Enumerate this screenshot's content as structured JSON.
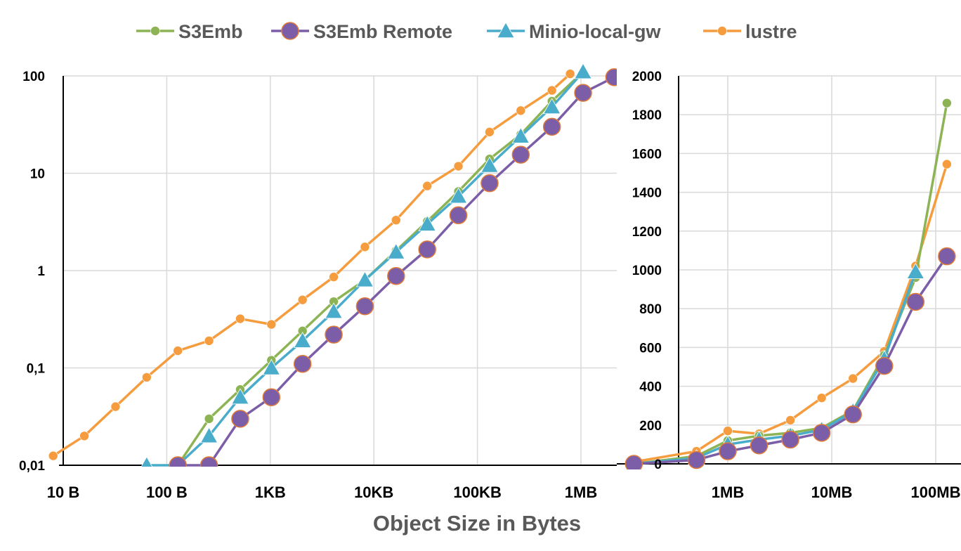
{
  "chart_data": [
    {
      "type": "line",
      "panel": "left",
      "y_scale": "log",
      "x_scale": "log",
      "ylim": [
        0.01,
        100
      ],
      "xlim": [
        "10 B",
        "~3MB"
      ],
      "y_ticks": [
        "0,01",
        "0,1",
        "1",
        "10",
        "100"
      ],
      "x_ticks": [
        "10 B",
        "100 B",
        "1KB",
        "10KB",
        "100KB",
        "1MB"
      ],
      "grid": true,
      "series": [
        {
          "name": "S3Emb",
          "color": "#8db454",
          "marker": "circle-small",
          "x_bytes": [
            128,
            256,
            512,
            1024,
            2048,
            4096,
            8192,
            16384,
            32768,
            65536,
            131072,
            262144,
            524288,
            1048576
          ],
          "y": [
            0.01,
            0.03,
            0.06,
            0.12,
            0.24,
            0.48,
            0.8,
            1.6,
            3.2,
            6.5,
            14,
            25,
            55,
            110
          ]
        },
        {
          "name": "S3Emb Remote",
          "color": "#7b5ea7",
          "marker": "circle-large",
          "x_bytes": [
            128,
            256,
            512,
            1024,
            2048,
            4096,
            8192,
            16384,
            32768,
            65536,
            131072,
            262144,
            524288,
            1048576,
            2097152
          ],
          "y": [
            0.01,
            0.01,
            0.03,
            0.05,
            0.11,
            0.22,
            0.43,
            0.88,
            1.65,
            3.7,
            7.9,
            15.5,
            30,
            67,
            97
          ]
        },
        {
          "name": "Minio-local-gw",
          "color": "#4aaccb",
          "marker": "triangle",
          "x_bytes": [
            64,
            128,
            256,
            512,
            1024,
            2048,
            4096,
            8192,
            16384,
            32768,
            65536,
            131072,
            262144,
            524288,
            1048576
          ],
          "y": [
            0.01,
            0.01,
            0.02,
            0.05,
            0.1,
            0.19,
            0.38,
            0.8,
            1.55,
            3.0,
            5.8,
            12,
            24,
            48,
            110
          ]
        },
        {
          "name": "lustre",
          "color": "#f59c3e",
          "marker": "circle-small",
          "x_bytes": [
            8,
            16,
            32,
            64,
            128,
            256,
            512,
            1024,
            2048,
            4096,
            8192,
            16384,
            32768,
            65536,
            131072,
            262144,
            524288,
            786432
          ],
          "y": [
            0.0125,
            0.02,
            0.04,
            0.08,
            0.15,
            0.19,
            0.32,
            0.28,
            0.5,
            0.86,
            1.75,
            3.3,
            7.4,
            11.8,
            26.5,
            44,
            71,
            105
          ]
        }
      ]
    },
    {
      "type": "line",
      "panel": "right",
      "y_scale": "linear",
      "x_scale": "log",
      "ylim": [
        0,
        2000
      ],
      "y_ticks": [
        "0",
        "200",
        "400",
        "600",
        "800",
        "1000",
        "1200",
        "1400",
        "1600",
        "1800",
        "2000"
      ],
      "x_ticks": [
        "1MB",
        "10MB",
        "100MB"
      ],
      "grid": true,
      "series": [
        {
          "name": "S3Emb",
          "color": "#8db454",
          "marker": "circle-small",
          "x_bytes": [
            131072,
            524288,
            1048576,
            2097152,
            4194304,
            8388608,
            16777216,
            33554432,
            67108864,
            134217728
          ],
          "y": [
            0,
            40,
            120,
            145,
            160,
            185,
            275,
            560,
            960,
            1860
          ]
        },
        {
          "name": "S3Emb Remote",
          "color": "#7b5ea7",
          "marker": "circle-large",
          "x_bytes": [
            131072,
            524288,
            1048576,
            2097152,
            4194304,
            8388608,
            16777216,
            33554432,
            67108864,
            134217728
          ],
          "y": [
            0,
            20,
            65,
            95,
            125,
            160,
            255,
            505,
            835,
            1070
          ]
        },
        {
          "name": "Minio-local-gw",
          "color": "#4aaccb",
          "marker": "triangle",
          "x_bytes": [
            131072,
            524288,
            1048576,
            2097152,
            4194304,
            8388608,
            16777216,
            33554432,
            67108864
          ],
          "y": [
            0,
            30,
            100,
            125,
            145,
            175,
            270,
            540,
            990
          ]
        },
        {
          "name": "lustre",
          "color": "#f59c3e",
          "marker": "circle-small",
          "x_bytes": [
            131072,
            524288,
            1048576,
            2097152,
            4194304,
            8388608,
            16777216,
            33554432,
            67108864,
            134217728
          ],
          "y": [
            10,
            65,
            170,
            155,
            225,
            340,
            440,
            580,
            1020,
            1545
          ]
        }
      ]
    }
  ],
  "xlabel": "Object Size in Bytes",
  "legend_placement": "top"
}
